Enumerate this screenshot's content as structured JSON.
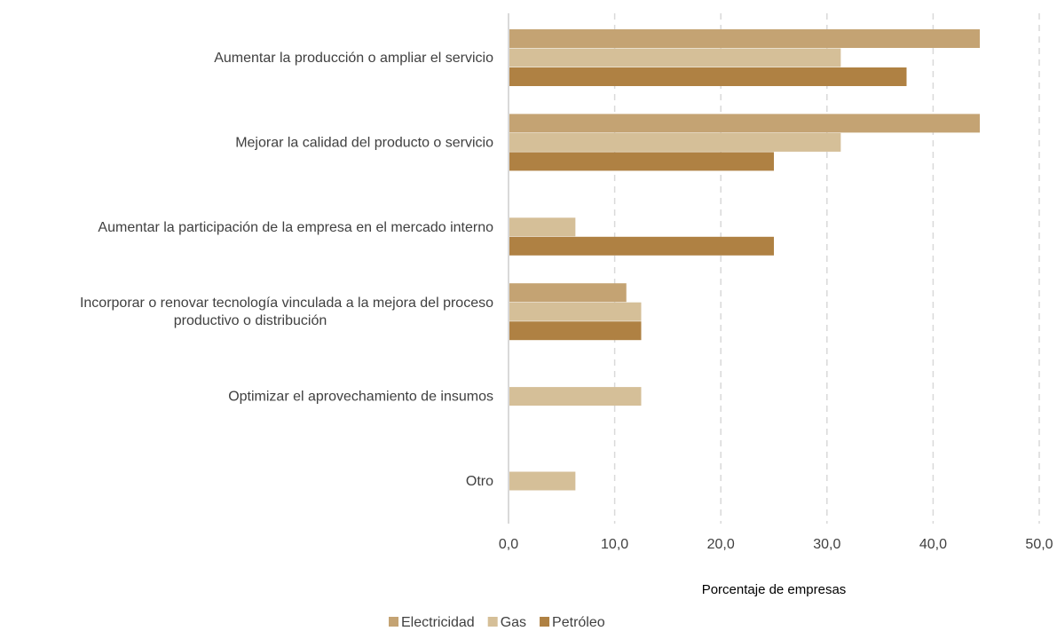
{
  "chart_data": {
    "type": "bar",
    "orientation": "horizontal",
    "categories": [
      [
        "Aumentar la producción o ampliar el servicio"
      ],
      [
        "Mejorar la calidad del producto o servicio"
      ],
      [
        "Aumentar la participación de la empresa en el mercado interno"
      ],
      [
        "Incorporar o renovar tecnología vinculada a la mejora del proceso",
        "productivo o distribución"
      ],
      [
        "Optimizar el aprovechamiento de insumos"
      ],
      [
        "Otro"
      ]
    ],
    "series": [
      {
        "name": "Electricidad",
        "color": "#c4a373",
        "values": [
          44.4,
          44.4,
          null,
          11.1,
          null,
          null
        ]
      },
      {
        "name": "Gas",
        "color": "#d5bf98",
        "values": [
          31.3,
          31.3,
          6.3,
          12.5,
          12.5,
          6.3
        ]
      },
      {
        "name": "Petróleo",
        "color": "#af8143",
        "values": [
          37.5,
          25.0,
          25.0,
          12.5,
          null,
          null
        ]
      }
    ],
    "xlabel": "Porcentaje de empresas",
    "ylabel": "",
    "xlim": [
      0,
      50
    ],
    "xticks": [
      "0,0",
      "10,0",
      "20,0",
      "30,0",
      "40,0",
      "50,0"
    ],
    "grid": "vertical dashed",
    "legend_position": "bottom"
  }
}
